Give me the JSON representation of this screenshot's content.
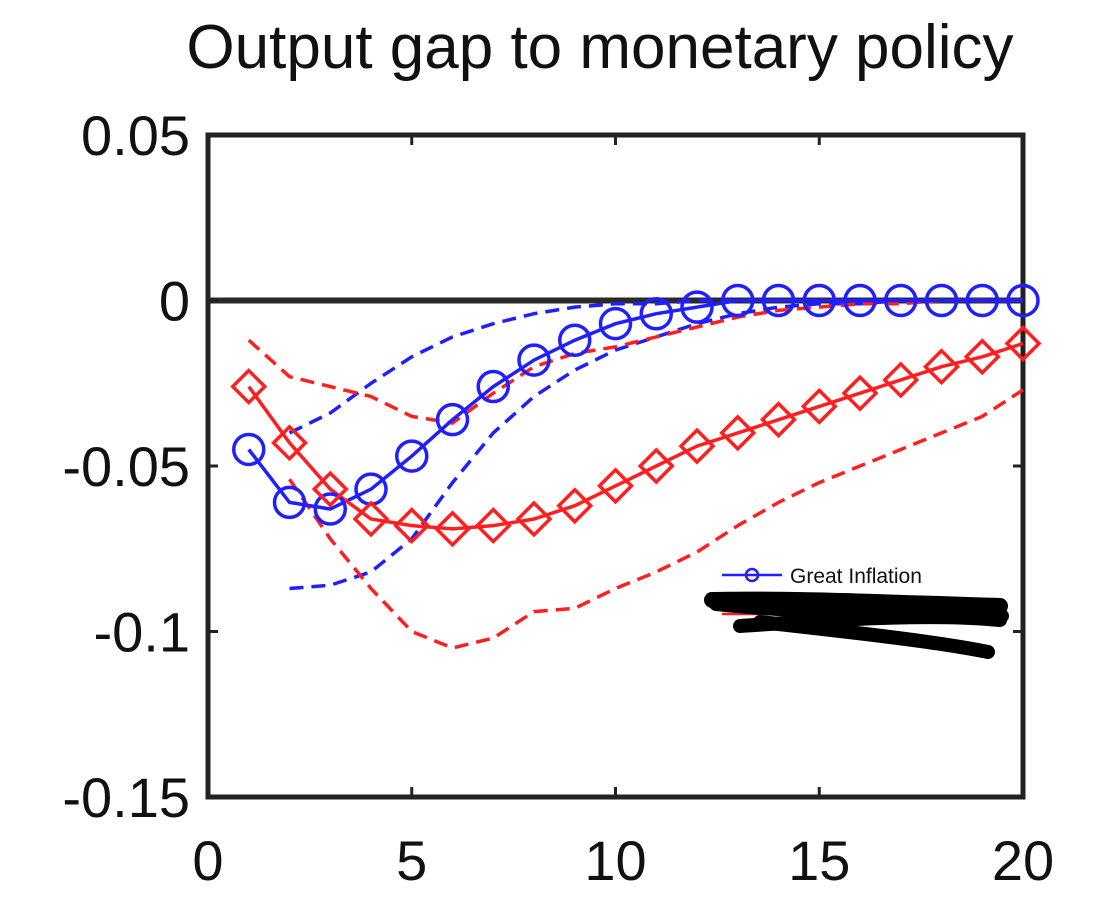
{
  "chart_data": {
    "type": "line",
    "title": "Output gap to monetary policy",
    "xlabel": "",
    "ylabel": "",
    "xlim": [
      0,
      20
    ],
    "ylim": [
      -0.15,
      0.05
    ],
    "xticks": [
      0,
      5,
      10,
      15,
      20
    ],
    "yticks": [
      -0.15,
      -0.1,
      -0.05,
      0,
      0.05
    ],
    "xtick_labels": [
      "0",
      "5",
      "10",
      "15",
      "20"
    ],
    "ytick_labels": [
      "-0.15",
      "-0.1",
      "-0.05",
      "0",
      "0.05"
    ],
    "grid": false,
    "legend_position": "lower-right",
    "x": [
      1,
      2,
      3,
      4,
      5,
      6,
      7,
      8,
      9,
      10,
      11,
      12,
      13,
      14,
      15,
      16,
      17,
      18,
      19,
      20
    ],
    "series": [
      {
        "name": "Great Inflation",
        "color": "#1f1fff",
        "marker": "circle",
        "values": [
          -0.045,
          -0.061,
          -0.063,
          -0.057,
          -0.047,
          -0.036,
          -0.026,
          -0.018,
          -0.012,
          -0.007,
          -0.004,
          -0.002,
          0.0,
          0.0,
          0.0,
          0.0,
          0.0,
          0.0,
          0.0,
          0.0
        ],
        "band_upper": [
          null,
          -0.04,
          -0.034,
          -0.025,
          -0.017,
          -0.011,
          -0.007,
          -0.004,
          -0.002,
          -0.001,
          -0.001,
          0.0,
          0.0,
          0.0,
          0.0,
          0.0,
          0.0,
          0.0,
          0.0,
          0.0
        ],
        "band_lower": [
          null,
          -0.087,
          -0.086,
          -0.082,
          -0.072,
          -0.055,
          -0.04,
          -0.029,
          -0.021,
          -0.015,
          -0.011,
          -0.007,
          -0.004,
          -0.002,
          -0.001,
          -0.001,
          0.0,
          0.0,
          0.0,
          0.0
        ]
      },
      {
        "name": "",
        "color": "#ff1f1f",
        "marker": "diamond",
        "values": [
          -0.026,
          -0.043,
          -0.057,
          -0.066,
          -0.068,
          -0.069,
          -0.068,
          -0.066,
          -0.062,
          -0.056,
          -0.05,
          -0.044,
          -0.04,
          -0.036,
          -0.032,
          -0.028,
          -0.024,
          -0.02,
          -0.017,
          -0.013
        ],
        "band_upper": [
          -0.012,
          -0.023,
          -0.026,
          -0.029,
          -0.035,
          -0.037,
          -0.028,
          -0.02,
          -0.016,
          -0.014,
          -0.011,
          -0.008,
          -0.005,
          -0.003,
          -0.002,
          -0.001,
          -0.001,
          0.0,
          0.0,
          0.0
        ],
        "band_lower": [
          null,
          -0.054,
          -0.072,
          -0.087,
          -0.1,
          -0.105,
          -0.102,
          -0.094,
          -0.093,
          -0.087,
          -0.082,
          -0.076,
          -0.068,
          -0.061,
          -0.055,
          -0.05,
          -0.045,
          -0.04,
          -0.035,
          -0.027
        ]
      }
    ]
  }
}
